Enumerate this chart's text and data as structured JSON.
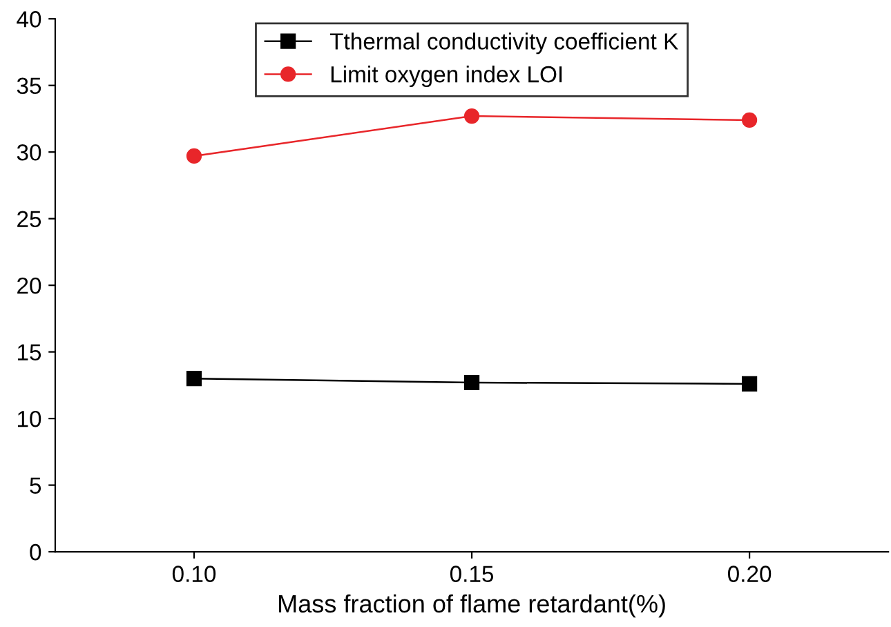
{
  "chart_data": {
    "type": "line",
    "xlabel": "Mass fraction of flame retardant(%)",
    "x": [
      0.1,
      0.15,
      0.2
    ],
    "series": [
      {
        "name": "Tthermal conductivity coefficient K",
        "color": "#000000",
        "marker": "square",
        "values": [
          13.0,
          12.7,
          12.6
        ]
      },
      {
        "name": "Limit oxygen index LOI",
        "color": "#e8262a",
        "marker": "circle",
        "values": [
          29.7,
          32.7,
          32.4
        ]
      }
    ],
    "xlim": [
      0.075,
      0.225
    ],
    "xticks": [
      {
        "value": 0.1,
        "label": "0.10"
      },
      {
        "value": 0.15,
        "label": "0.15"
      },
      {
        "value": 0.2,
        "label": "0.20"
      }
    ],
    "ylim": [
      0,
      40
    ],
    "yticks": [
      0,
      5,
      10,
      15,
      20,
      25,
      30,
      35,
      40
    ],
    "grid": false,
    "legend": "top"
  }
}
